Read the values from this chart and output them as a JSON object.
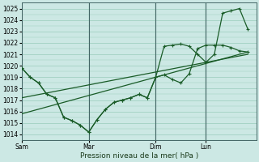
{
  "xlabel": "Pression niveau de la mer( hPa )",
  "ylim": [
    1013.5,
    1025.5
  ],
  "yticks": [
    1014,
    1015,
    1016,
    1017,
    1018,
    1019,
    1020,
    1021,
    1022,
    1023,
    1024,
    1025
  ],
  "bg_color": "#cce8e4",
  "grid_color": "#99ccbb",
  "line_color": "#1a5c28",
  "day_labels": [
    "Sam",
    "Mar",
    "Dim",
    "Lun"
  ],
  "day_positions": [
    0,
    48,
    96,
    132
  ],
  "xlim": [
    0,
    168
  ],
  "vline_positions": [
    0,
    48,
    96,
    132
  ],
  "series1_x": [
    0,
    6,
    12,
    18,
    24,
    30,
    36,
    42,
    48,
    54,
    60,
    66,
    72,
    78,
    84,
    90,
    96,
    102,
    108,
    114,
    120,
    126,
    132,
    138,
    144,
    150,
    156,
    162
  ],
  "series1_y": [
    1019.8,
    1019.0,
    1018.5,
    1017.5,
    1017.2,
    1015.5,
    1015.2,
    1014.8,
    1014.2,
    1015.3,
    1016.2,
    1016.8,
    1017.0,
    1017.2,
    1017.5,
    1017.2,
    1019.0,
    1019.2,
    1018.8,
    1018.5,
    1019.3,
    1021.5,
    1021.8,
    1021.8,
    1021.8,
    1021.6,
    1021.3,
    1021.2
  ],
  "series2_x": [
    0,
    6,
    12,
    18,
    24,
    30,
    36,
    42,
    48,
    54,
    60,
    66,
    72,
    78,
    84,
    90,
    96,
    102,
    108,
    114,
    120,
    126,
    132,
    138,
    144,
    150,
    156,
    162
  ],
  "series2_y": [
    1019.8,
    1019.0,
    1018.5,
    1017.5,
    1017.2,
    1015.5,
    1015.2,
    1014.8,
    1014.2,
    1015.3,
    1016.2,
    1016.8,
    1017.0,
    1017.2,
    1017.5,
    1017.2,
    1019.0,
    1021.7,
    1021.8,
    1021.9,
    1021.7,
    1021.0,
    1020.3,
    1021.0,
    1024.6,
    1024.8,
    1025.0,
    1023.2
  ],
  "trend1_x": [
    0,
    162
  ],
  "trend1_y": [
    1015.8,
    1021.2
  ],
  "trend2_x": [
    0,
    162
  ],
  "trend2_y": [
    1017.2,
    1021.0
  ]
}
